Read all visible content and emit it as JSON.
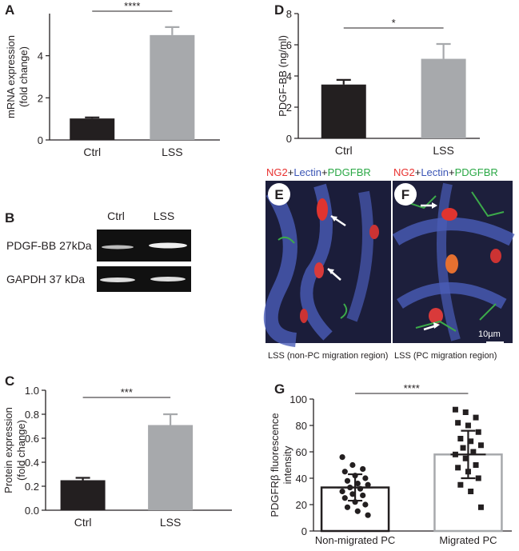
{
  "chart_data": [
    {
      "type": "bar",
      "panel": "A",
      "ylabel": [
        "mRNA expression",
        "(fold change)"
      ],
      "categories": [
        "Ctrl",
        "LSS"
      ],
      "values": [
        1.02,
        4.98
      ],
      "errors": [
        0.05,
        0.38
      ],
      "colors": [
        "#231f20",
        "#a7a9ac"
      ],
      "filled": true,
      "significance": "****",
      "ylim": [
        0,
        6
      ],
      "yticks": [
        0,
        2,
        4
      ]
    },
    {
      "type": "bar",
      "panel": "D",
      "ylabel": [
        "PDGF-BB (ng/ml)"
      ],
      "categories": [
        "Ctrl",
        "LSS"
      ],
      "values": [
        3.45,
        5.1
      ],
      "errors": [
        0.3,
        0.95
      ],
      "colors": [
        "#231f20",
        "#a7a9ac"
      ],
      "filled": true,
      "significance": "*",
      "ylim": [
        0,
        8
      ],
      "yticks": [
        0,
        2,
        4,
        6,
        8
      ]
    },
    {
      "type": "bar",
      "panel": "C",
      "ylabel": [
        "Protein expression",
        "(fold change)"
      ],
      "categories": [
        "Ctrl",
        "LSS"
      ],
      "values": [
        0.25,
        0.71
      ],
      "errors": [
        0.02,
        0.09
      ],
      "colors": [
        "#231f20",
        "#a7a9ac"
      ],
      "filled": true,
      "significance": "***",
      "ylim": [
        0,
        1
      ],
      "yticks": [
        {
          "value": 0,
          "label": "0.0"
        },
        0.2,
        0.4,
        0.6,
        0.8,
        {
          "value": 1,
          "label": "1.0"
        }
      ]
    },
    {
      "type": "bar",
      "panel": "G",
      "ylabel": [
        "PDGFRβ fluorescence",
        "intensity"
      ],
      "categories": [
        "Non-migrated PC",
        "Migrated PC"
      ],
      "values": [
        33,
        58
      ],
      "errors": [
        10,
        18
      ],
      "colors": [
        "#231f20",
        "#a7a9ac"
      ],
      "filled": false,
      "significance": "****",
      "ylim": [
        0,
        100
      ],
      "yticks": [
        0,
        20,
        40,
        60,
        80,
        100
      ],
      "points": [
        [
          56,
          50,
          47,
          45,
          42,
          40,
          38,
          36,
          35,
          33,
          32,
          30,
          28,
          27,
          25,
          22,
          20,
          18,
          15,
          12
        ],
        [
          92,
          90,
          86,
          82,
          80,
          75,
          70,
          68,
          65,
          63,
          60,
          58,
          55,
          50,
          48,
          45,
          40,
          35,
          30,
          18
        ]
      ]
    }
  ],
  "blot": {
    "panel": "B",
    "lanes": [
      "Ctrl",
      "LSS"
    ],
    "rows": [
      "PDGF-BB 27kDa",
      "GAPDH 37 kDa"
    ]
  },
  "images": [
    {
      "panel": "E",
      "stain": [
        {
          "text": "NG2",
          "color": "#e8312f"
        },
        {
          "text": "+",
          "color": "#231f20"
        },
        {
          "text": "Lectin",
          "color": "#3b55b5"
        },
        {
          "text": "+",
          "color": "#231f20"
        },
        {
          "text": "PDGFBR",
          "color": "#2aa845"
        }
      ],
      "caption": "LSS (non-PC migration region)"
    },
    {
      "panel": "F",
      "stain": [
        {
          "text": "NG2",
          "color": "#e8312f"
        },
        {
          "text": "+",
          "color": "#231f20"
        },
        {
          "text": "Lectin",
          "color": "#3b55b5"
        },
        {
          "text": "+",
          "color": "#231f20"
        },
        {
          "text": "PDGFBR",
          "color": "#2aa845"
        }
      ],
      "caption": "LSS (PC migration region)",
      "scale_bar": "10µm"
    }
  ]
}
